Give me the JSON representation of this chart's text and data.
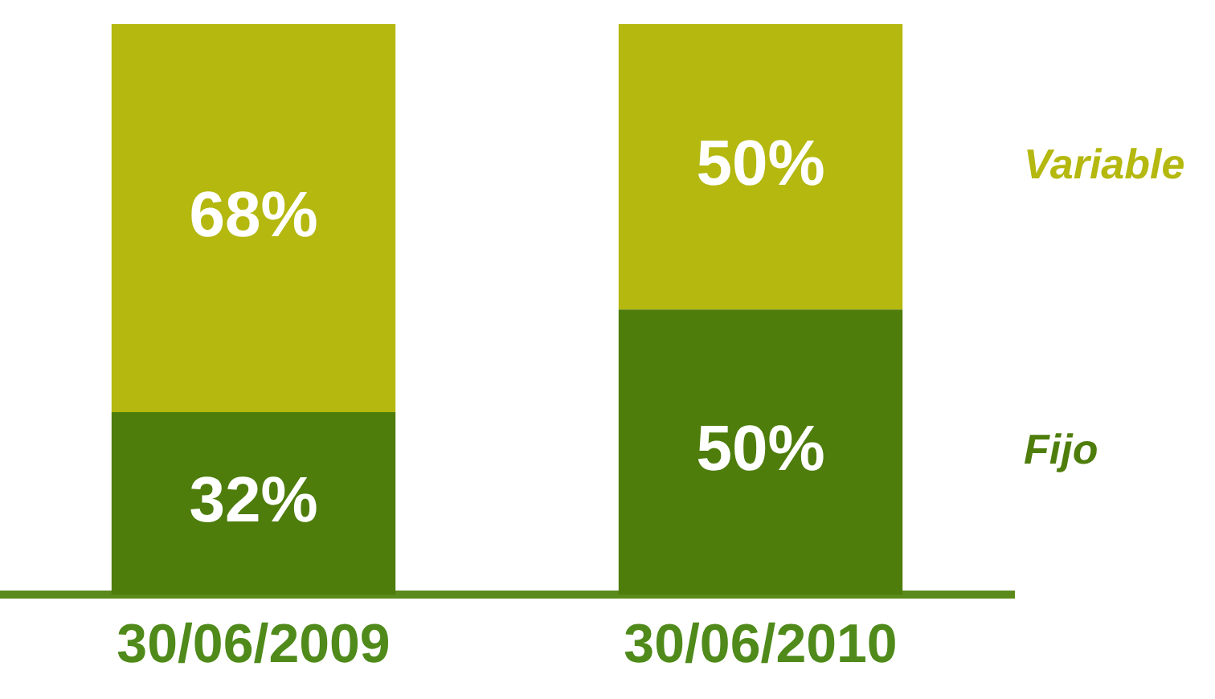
{
  "chart_data": {
    "type": "bar",
    "stacked": true,
    "categories": [
      "30/06/2009",
      "30/06/2010"
    ],
    "series": [
      {
        "name": "Fijo",
        "color": "#4e7d0c",
        "values": [
          32,
          50
        ],
        "value_labels": [
          "32%",
          "50%"
        ]
      },
      {
        "name": "Variable",
        "color": "#b4b80f",
        "values": [
          68,
          50
        ],
        "value_labels": [
          "68%",
          "50%"
        ]
      }
    ],
    "legend": "right"
  }
}
